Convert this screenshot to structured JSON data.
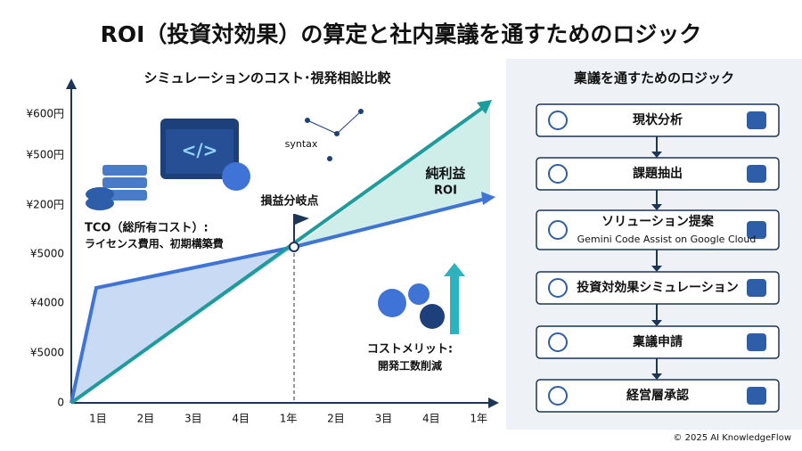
{
  "header": {
    "title": "ROI（投資対効果）の算定と社内稟議を通すためのロジック"
  },
  "left_panel": {
    "subtitle": "シミュレーションのコスト･視発相設比較",
    "y_axis_labels": [
      "¥600円",
      "¥500円",
      "¥200円",
      "¥5000",
      "¥4000",
      "¥5000",
      "0"
    ],
    "x_axis_labels": [
      "1目",
      "2目",
      "3目",
      "4目",
      "1年",
      "2目",
      "3目",
      "4目",
      "1年"
    ],
    "breakeven": "損益分岐点",
    "tco": [
      "TCO（総所有コスト）:",
      "ライセンス費用、初期構築費"
    ],
    "profit": [
      "純利益",
      "ROI"
    ],
    "merit": [
      "コストメリット:",
      "開発工数削減"
    ],
    "syntax": "syntax"
  },
  "right_panel": {
    "title": "稟議を通すためのロジック",
    "steps": [
      {
        "label": "現状分析"
      },
      {
        "label": "課題抽出"
      },
      {
        "label": "ソリューション提案",
        "sub": "Gemini Code Assist on Google Cloud"
      },
      {
        "label": "投資対効果シミュレーション"
      },
      {
        "label": "稟議申請"
      },
      {
        "label": "経営層承認"
      }
    ]
  },
  "footer": "© 2025 AI KnowledgeFlow"
}
